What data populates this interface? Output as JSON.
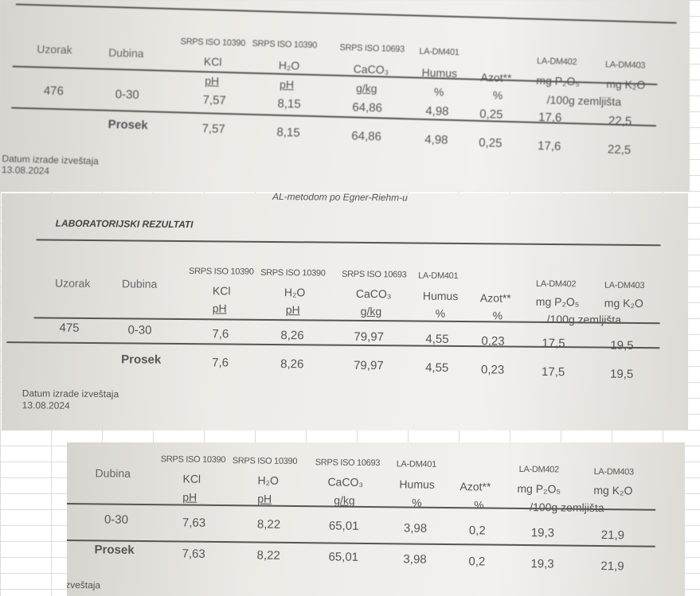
{
  "photos": [
    {
      "standards": [
        "SRPS ISO 10390",
        "SRPS ISO 10390",
        "SRPS ISO 10693",
        "LA-DM401",
        "LA-DM402",
        "LA-DM403"
      ],
      "headers": {
        "uzorak": "Uzorak",
        "dubina": "Dubina",
        "kcl": "KCl",
        "ph1": "pH",
        "h2o": "H₂O",
        "ph2": "pH",
        "caco3": "CaCO₃",
        "gkg": "g/kg",
        "humus": "Humus",
        "humus_unit": "%",
        "azot": "Azot**",
        "azot_unit": "%",
        "p2o5": "mg P₂O₅",
        "k2o": "mg K₂O",
        "unit": "/100g zemljišta"
      },
      "row": {
        "uzorak": "476",
        "dubina": "0-30",
        "kcl": "7,57",
        "h2o": "8,15",
        "caco3": "64,86",
        "humus": "4,98",
        "azot": "0,25",
        "p2o5": "17,6",
        "k2o": "22,5"
      },
      "prosek": {
        "label": "Prosek",
        "kcl": "7,57",
        "h2o": "8,15",
        "caco3": "64,86",
        "humus": "4,98",
        "azot": "0,25",
        "p2o5": "17,6",
        "k2o": "22,5"
      },
      "datum_label": "Datum izrade izveštaja",
      "datum": "13.08.2024"
    },
    {
      "top_text": "AL-metodom po Egner-Riehm-u",
      "title": "LABORATORIJSKI REZULTATI",
      "standards": [
        "SRPS ISO 10390",
        "SRPS ISO 10390",
        "SRPS ISO 10693",
        "LA-DM401",
        "LA-DM402",
        "LA-DM403"
      ],
      "headers": {
        "uzorak": "Uzorak",
        "dubina": "Dubina",
        "kcl": "KCl",
        "ph1": "pH",
        "h2o": "H₂O",
        "ph2": "pH",
        "caco3": "CaCO₃",
        "gkg": "g/kg",
        "humus": "Humus",
        "humus_unit": "%",
        "azot": "Azot**",
        "azot_unit": "%",
        "p2o5": "mg P₂O₅",
        "k2o": "mg K₂O",
        "unit": "/100g zemljišta"
      },
      "row": {
        "uzorak": "475",
        "dubina": "0-30",
        "kcl": "7,6",
        "h2o": "8,26",
        "caco3": "79,97",
        "humus": "4,55",
        "azot": "0,23",
        "p2o5": "17,5",
        "k2o": "19,5"
      },
      "prosek": {
        "label": "Prosek",
        "kcl": "7,6",
        "h2o": "8,26",
        "caco3": "79,97",
        "humus": "4,55",
        "azot": "0,23",
        "p2o5": "17,5",
        "k2o": "19,5"
      },
      "datum_label": "Datum izrade izveštaja",
      "datum": "13.08.2024"
    },
    {
      "standards": [
        "SRPS ISO 10390",
        "SRPS ISO 10390",
        "SRPS ISO 10693",
        "LA-DM401",
        "LA-DM402",
        "LA-DM403"
      ],
      "headers": {
        "dubina": "Dubina",
        "kcl": "KCl",
        "ph1": "pH",
        "h2o": "H₂O",
        "ph2": "pH",
        "caco3": "CaCO₃",
        "gkg": "g/kg",
        "humus": "Humus",
        "humus_unit": "%",
        "azot": "Azot**",
        "azot_unit": "%",
        "p2o5": "mg P₂O₅",
        "k2o": "mg K₂O",
        "unit": "/100g zemljišta"
      },
      "row": {
        "dubina": "0-30",
        "kcl": "7,63",
        "h2o": "8,22",
        "caco3": "65,01",
        "humus": "3,98",
        "azot": "0,2",
        "p2o5": "19,3",
        "k2o": "21,9"
      },
      "prosek": {
        "label": "Prosek",
        "kcl": "7,63",
        "h2o": "8,22",
        "caco3": "65,01",
        "humus": "3,98",
        "azot": "0,2",
        "p2o5": "19,3",
        "k2o": "21,9"
      },
      "datum_fragment": "zveštaja"
    }
  ]
}
